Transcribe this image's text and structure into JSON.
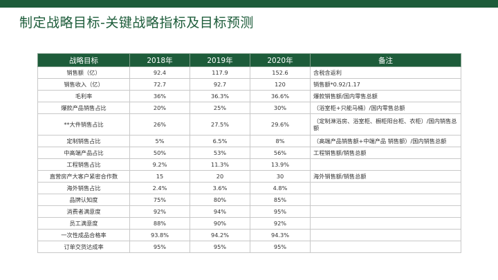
{
  "slide": {
    "title": "制定战略目标-关键战略指标及目标预测"
  },
  "table": {
    "headers": [
      "战略目标",
      "2018年",
      "2019年",
      "2020年",
      "备注"
    ],
    "rows": [
      [
        "销售额（亿）",
        "92.4",
        "117.9",
        "152.6",
        "含税含返利"
      ],
      [
        "销售收入（亿）",
        "72.7",
        "92.7",
        "120",
        "销售额*0.92/1.17"
      ],
      [
        "毛利率",
        "36%",
        "36.3%",
        "36.6%",
        "爆款销售额/国内零售总额"
      ],
      [
        "爆款产品销售占比",
        "20%",
        "25%",
        "30%",
        "（浴室柜+只能马桶）/国内零售总额"
      ],
      [
        "**大件销售占比",
        "26%",
        "27.5%",
        "29.6%",
        "（定制淋浴房、浴室柜、橱柜阳台柜、衣柜）/国内销售总额"
      ],
      [
        "定制销售占比",
        "5%",
        "6.5%",
        "8%",
        "（高端产品销售额+中端产品 销售额）/国内销售总额"
      ],
      [
        "中高端产品占比",
        "50%",
        "53%",
        "56%",
        "工程销售额/销售总额"
      ],
      [
        "工程销售占比",
        "9.2%",
        "11.3%",
        "13.9%",
        ""
      ],
      [
        "直营房产大客户紧密合作数",
        "15",
        "20",
        "30",
        "海外销售额/销售总额"
      ],
      [
        "海外销售占比",
        "2.4%",
        "3.6%",
        "4.8%",
        ""
      ],
      [
        "品牌认知度",
        "75%",
        "80%",
        "85%",
        ""
      ],
      [
        "消费者满意度",
        "92%",
        "94%",
        "95%",
        ""
      ],
      [
        "员工满意度",
        "88%",
        "90%",
        "92%",
        ""
      ],
      [
        "一次性成品合格率",
        "93.8%",
        "94.2%",
        "94.3%",
        ""
      ],
      [
        "订单交货达成率",
        "95%",
        "95%",
        "95%",
        ""
      ]
    ]
  }
}
